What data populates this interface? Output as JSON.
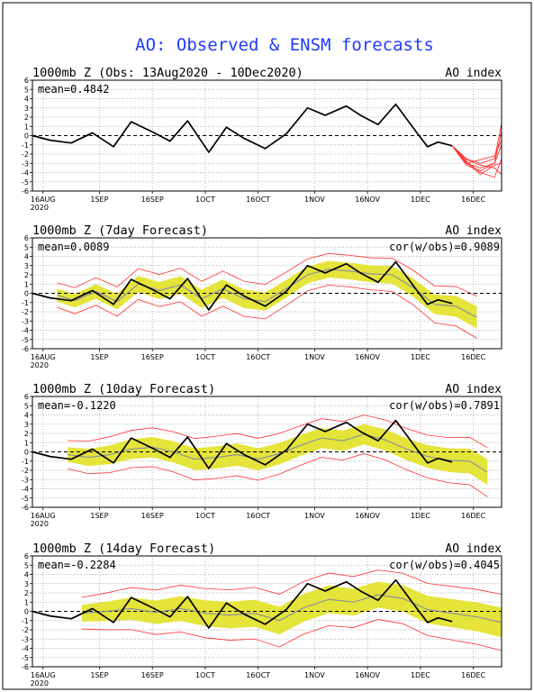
{
  "title": "AO: Observed & ENSM forecasts",
  "colors": {
    "title": "#1f3bff",
    "observed": "#000000",
    "members": "#ff3030",
    "spread": "#e4e43a",
    "ens_mean": "#8a8aa0"
  },
  "chart_data": [
    {
      "type": "line",
      "title": "1000mb Z (Obs: 13Aug2020 - 10Dec2020)",
      "right_label": "AO index",
      "annotation_left": "mean=0.4842",
      "annotation_right": "",
      "x_tick_labels": [
        "16AUG",
        "1SEP",
        "16SEP",
        "1OCT",
        "16OCT",
        "1NOV",
        "16NOV",
        "1DEC",
        "16DEC"
      ],
      "x_year_label": "2020",
      "ylim": [
        -6,
        6
      ],
      "y_ticks": [
        6,
        5,
        4,
        3,
        2,
        1,
        0,
        -1,
        -2,
        -3,
        -4,
        -5,
        -6
      ],
      "series": [
        {
          "x": [
            "2020-08-13",
            "2020-08-18",
            "2020-08-24",
            "2020-08-30",
            "2020-09-05",
            "2020-09-10",
            "2020-09-16",
            "2020-09-21",
            "2020-09-26",
            "2020-10-02",
            "2020-10-07",
            "2020-10-12",
            "2020-10-18",
            "2020-10-24",
            "2020-10-30",
            "2020-11-04",
            "2020-11-10",
            "2020-11-14",
            "2020-11-19",
            "2020-11-24",
            "2020-11-30",
            "2020-12-03",
            "2020-12-06",
            "2020-12-10"
          ],
          "y": [
            0.0,
            -0.5,
            -0.8,
            0.3,
            -1.2,
            1.5,
            0.4,
            -0.6,
            1.6,
            -1.8,
            0.9,
            -0.3,
            -1.4,
            0.2,
            3.0,
            2.2,
            3.2,
            2.2,
            1.2,
            3.4,
            0.3,
            -1.2,
            -0.7,
            -1.1
          ]
        }
      ],
      "forecast_members": {
        "x": [
          "2020-12-10",
          "2020-12-14",
          "2020-12-18",
          "2020-12-22",
          "2020-12-24"
        ],
        "members": [
          [
            -1.1,
            -2.5,
            -3.0,
            -2.5,
            1.3
          ],
          [
            -1.1,
            -3.0,
            -3.5,
            -3.0,
            0.5
          ],
          [
            -1.1,
            -2.8,
            -4.0,
            -4.5,
            -2.5
          ],
          [
            -1.1,
            -3.2,
            -3.8,
            -3.0,
            -1.0
          ],
          [
            -1.1,
            -2.6,
            -3.2,
            -3.5,
            -4.2
          ],
          [
            -1.1,
            -3.0,
            -2.6,
            -2.2,
            -0.5
          ],
          [
            -1.1,
            -2.9,
            -4.2,
            -3.2,
            -3.0
          ]
        ]
      }
    },
    {
      "type": "line",
      "title": "1000mb Z (7day Forecast)",
      "right_label": "AO index",
      "annotation_left": "mean=0.0089",
      "annotation_right": "cor(w/obs)=0.9089",
      "x_tick_labels": [
        "16AUG",
        "1SEP",
        "16SEP",
        "1OCT",
        "16OCT",
        "1NOV",
        "16NOV",
        "1DEC",
        "16DEC"
      ],
      "x_year_label": "2020",
      "ylim": [
        -6,
        6
      ],
      "y_ticks": [
        6,
        5,
        4,
        3,
        2,
        1,
        0,
        -1,
        -2,
        -3,
        -4,
        -5,
        -6
      ],
      "series": [
        {
          "x": [
            "2020-08-13",
            "2020-08-18",
            "2020-08-24",
            "2020-08-30",
            "2020-09-05",
            "2020-09-10",
            "2020-09-16",
            "2020-09-21",
            "2020-09-26",
            "2020-10-02",
            "2020-10-07",
            "2020-10-12",
            "2020-10-18",
            "2020-10-24",
            "2020-10-30",
            "2020-11-04",
            "2020-11-10",
            "2020-11-14",
            "2020-11-19",
            "2020-11-24",
            "2020-11-30",
            "2020-12-03",
            "2020-12-06",
            "2020-12-10"
          ],
          "y": [
            0.0,
            -0.5,
            -0.8,
            0.3,
            -1.2,
            1.5,
            0.4,
            -0.6,
            1.6,
            -1.8,
            0.9,
            -0.3,
            -1.4,
            0.2,
            3.0,
            2.2,
            3.2,
            2.2,
            1.2,
            3.4,
            0.3,
            -1.2,
            -0.7,
            -1.1
          ]
        },
        {
          "x": [
            "2020-08-20",
            "2020-08-25",
            "2020-08-31",
            "2020-09-06",
            "2020-09-12",
            "2020-09-18",
            "2020-09-24",
            "2020-09-30",
            "2020-10-06",
            "2020-10-12",
            "2020-10-18",
            "2020-10-24",
            "2020-10-30",
            "2020-11-05",
            "2020-11-11",
            "2020-11-17",
            "2020-11-23",
            "2020-11-29",
            "2020-12-05",
            "2020-12-11",
            "2020-12-17"
          ],
          "y": [
            -0.2,
            -0.8,
            0.2,
            -0.9,
            1.0,
            0.3,
            0.9,
            -0.6,
            0.5,
            -0.6,
            -0.9,
            0.5,
            2.0,
            2.6,
            2.4,
            2.1,
            2.0,
            0.6,
            -1.2,
            -1.4,
            -2.6
          ]
        }
      ],
      "spread": {
        "x": [
          "2020-08-20",
          "2020-09-01",
          "2020-09-15",
          "2020-10-01",
          "2020-10-15",
          "2020-11-01",
          "2020-11-15",
          "2020-12-01",
          "2020-12-17"
        ],
        "half_width": [
          0.7,
          0.8,
          0.9,
          1.0,
          1.0,
          0.9,
          0.9,
          1.0,
          1.2
        ]
      }
    },
    {
      "type": "line",
      "title": "1000mb Z (10day Forecast)",
      "right_label": "AO index",
      "annotation_left": "mean=-0.1220",
      "annotation_right": "cor(w/obs)=0.7891",
      "x_tick_labels": [
        "16AUG",
        "1SEP",
        "16SEP",
        "1OCT",
        "16OCT",
        "1NOV",
        "16NOV",
        "1DEC",
        "16DEC"
      ],
      "x_year_label": "2020",
      "ylim": [
        -6,
        6
      ],
      "y_ticks": [
        6,
        5,
        4,
        3,
        2,
        1,
        0,
        -1,
        -2,
        -3,
        -4,
        -5,
        -6
      ],
      "series": [
        {
          "x": [
            "2020-08-13",
            "2020-08-18",
            "2020-08-24",
            "2020-08-30",
            "2020-09-05",
            "2020-09-10",
            "2020-09-16",
            "2020-09-21",
            "2020-09-26",
            "2020-10-02",
            "2020-10-07",
            "2020-10-12",
            "2020-10-18",
            "2020-10-24",
            "2020-10-30",
            "2020-11-04",
            "2020-11-10",
            "2020-11-14",
            "2020-11-19",
            "2020-11-24",
            "2020-11-30",
            "2020-12-03",
            "2020-12-06",
            "2020-12-10"
          ],
          "y": [
            0.0,
            -0.5,
            -0.8,
            0.3,
            -1.2,
            1.5,
            0.4,
            -0.6,
            1.6,
            -1.8,
            0.9,
            -0.3,
            -1.4,
            0.2,
            3.0,
            2.2,
            3.2,
            2.2,
            1.2,
            3.4,
            0.3,
            -1.2,
            -0.7,
            -1.1
          ]
        },
        {
          "x": [
            "2020-08-23",
            "2020-08-29",
            "2020-09-04",
            "2020-09-10",
            "2020-09-16",
            "2020-09-22",
            "2020-09-28",
            "2020-10-04",
            "2020-10-10",
            "2020-10-16",
            "2020-10-22",
            "2020-10-28",
            "2020-11-03",
            "2020-11-09",
            "2020-11-15",
            "2020-11-21",
            "2020-11-27",
            "2020-12-03",
            "2020-12-09",
            "2020-12-15",
            "2020-12-20"
          ],
          "y": [
            -0.3,
            -0.6,
            -0.3,
            0.3,
            0.5,
            0.0,
            -0.8,
            -0.6,
            -0.3,
            -0.8,
            -0.2,
            0.7,
            1.5,
            1.2,
            1.9,
            1.3,
            0.3,
            -0.5,
            -0.9,
            -1.0,
            -2.2
          ]
        }
      ],
      "spread": {
        "x": [
          "2020-08-23",
          "2020-09-01",
          "2020-09-15",
          "2020-10-01",
          "2020-10-15",
          "2020-11-01",
          "2020-11-15",
          "2020-12-01",
          "2020-12-20"
        ],
        "half_width": [
          0.8,
          1.0,
          1.1,
          1.2,
          1.2,
          1.1,
          1.1,
          1.2,
          1.4
        ]
      }
    },
    {
      "type": "line",
      "title": "1000mb Z (14day Forecast)",
      "right_label": "AO index",
      "annotation_left": "mean=-0.2284",
      "annotation_right": "cor(w/obs)=0.4045",
      "x_tick_labels": [
        "16AUG",
        "1SEP",
        "16SEP",
        "1OCT",
        "16OCT",
        "1NOV",
        "16NOV",
        "1DEC",
        "16DEC"
      ],
      "x_year_label": "2020",
      "ylim": [
        -6,
        6
      ],
      "y_ticks": [
        6,
        5,
        4,
        3,
        2,
        1,
        0,
        -1,
        -2,
        -3,
        -4,
        -5,
        -6
      ],
      "series": [
        {
          "x": [
            "2020-08-13",
            "2020-08-18",
            "2020-08-24",
            "2020-08-30",
            "2020-09-05",
            "2020-09-10",
            "2020-09-16",
            "2020-09-21",
            "2020-09-26",
            "2020-10-02",
            "2020-10-07",
            "2020-10-12",
            "2020-10-18",
            "2020-10-24",
            "2020-10-30",
            "2020-11-04",
            "2020-11-10",
            "2020-11-14",
            "2020-11-19",
            "2020-11-24",
            "2020-11-30",
            "2020-12-03",
            "2020-12-06",
            "2020-12-10"
          ],
          "y": [
            0.0,
            -0.5,
            -0.8,
            0.3,
            -1.2,
            1.5,
            0.4,
            -0.6,
            1.6,
            -1.8,
            0.9,
            -0.3,
            -1.4,
            0.2,
            3.0,
            2.2,
            3.2,
            2.2,
            1.2,
            3.4,
            0.3,
            -1.2,
            -0.7,
            -1.1
          ]
        },
        {
          "x": [
            "2020-08-27",
            "2020-09-03",
            "2020-09-10",
            "2020-09-17",
            "2020-09-24",
            "2020-10-01",
            "2020-10-08",
            "2020-10-15",
            "2020-10-22",
            "2020-10-29",
            "2020-11-05",
            "2020-11-12",
            "2020-11-19",
            "2020-11-26",
            "2020-12-03",
            "2020-12-10",
            "2020-12-17",
            "2020-12-24"
          ],
          "y": [
            -0.2,
            0.0,
            0.3,
            -0.1,
            0.3,
            -0.2,
            -0.4,
            -0.2,
            -1.0,
            0.4,
            1.3,
            1.0,
            1.8,
            1.4,
            0.2,
            -0.2,
            -0.6,
            -1.2
          ]
        }
      ],
      "spread": {
        "x": [
          "2020-08-27",
          "2020-09-10",
          "2020-10-01",
          "2020-10-20",
          "2020-11-05",
          "2020-11-20",
          "2020-12-05",
          "2020-12-24"
        ],
        "half_width": [
          0.9,
          1.2,
          1.4,
          1.5,
          1.5,
          1.4,
          1.5,
          1.6
        ]
      }
    }
  ]
}
